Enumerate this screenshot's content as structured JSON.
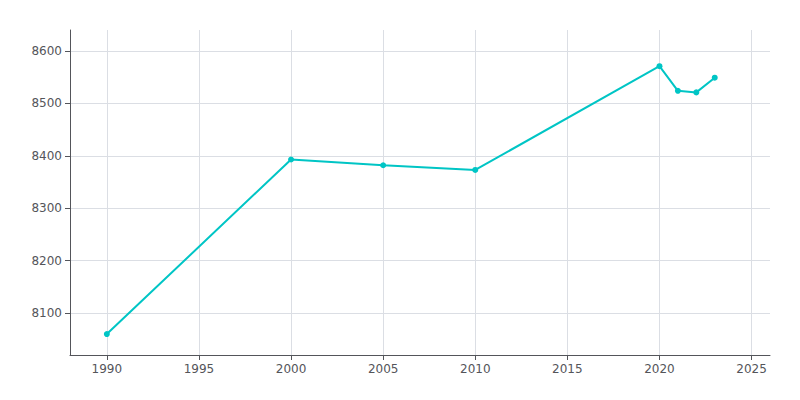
{
  "chart_data": {
    "type": "line",
    "x": [
      1990,
      2000,
      2005,
      2010,
      2020,
      2021,
      2022,
      2023
    ],
    "values": [
      8060,
      8393,
      8382,
      8373,
      8571,
      8524,
      8521,
      8549
    ],
    "color": "#00C5C5",
    "marker": "circle",
    "xlim": [
      1988,
      2026
    ],
    "xticks": [
      1990,
      1995,
      2000,
      2005,
      2010,
      2015,
      2020,
      2025
    ],
    "ylim": [
      8020,
      8640
    ],
    "yticks": [
      8100,
      8200,
      8300,
      8400,
      8500,
      8600
    ],
    "grid": true
  }
}
